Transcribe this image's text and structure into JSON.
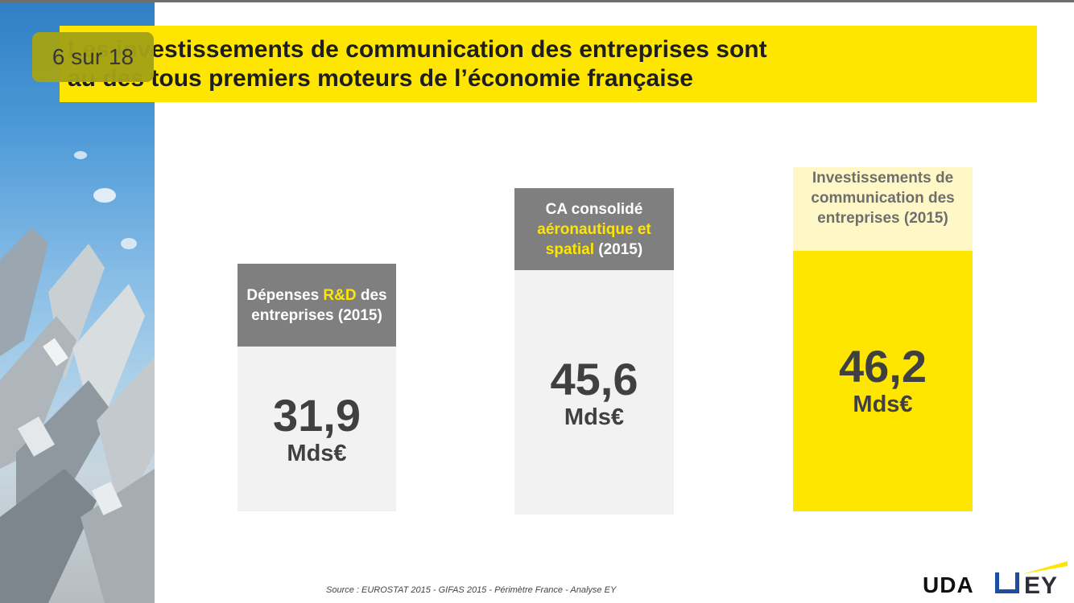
{
  "slide": {
    "page_badge": "6 sur 18",
    "title_line1": "Les investissements de communication des entreprises sont",
    "title_line2": "au des tous premiers moteurs de l’économie française"
  },
  "cards": [
    {
      "head_parts": [
        "Dépenses ",
        "R&D",
        " des entreprises (2015)"
      ],
      "value": "31,9",
      "unit": "Mds€"
    },
    {
      "head_parts": [
        "CA consolidé ",
        "aéronautique et spatial",
        " (2015)"
      ],
      "value": "45,6",
      "unit": "Mds€"
    },
    {
      "head_parts": [
        "Investissements de communication des entreprises (2015)"
      ],
      "value": "46,2",
      "unit": "Mds€"
    }
  ],
  "footer": {
    "source": "Source : EUROSTAT 2015 - GIFAS 2015  - Périmètre France -  Analyse EY",
    "logo_uda": "UDA",
    "logo_ey": "EY"
  },
  "colors": {
    "accent_yellow": "#ffe600",
    "header_grey": "#7f7f7f",
    "card_grey": "#f2f2f2",
    "badge_olive": "#a5a316"
  }
}
